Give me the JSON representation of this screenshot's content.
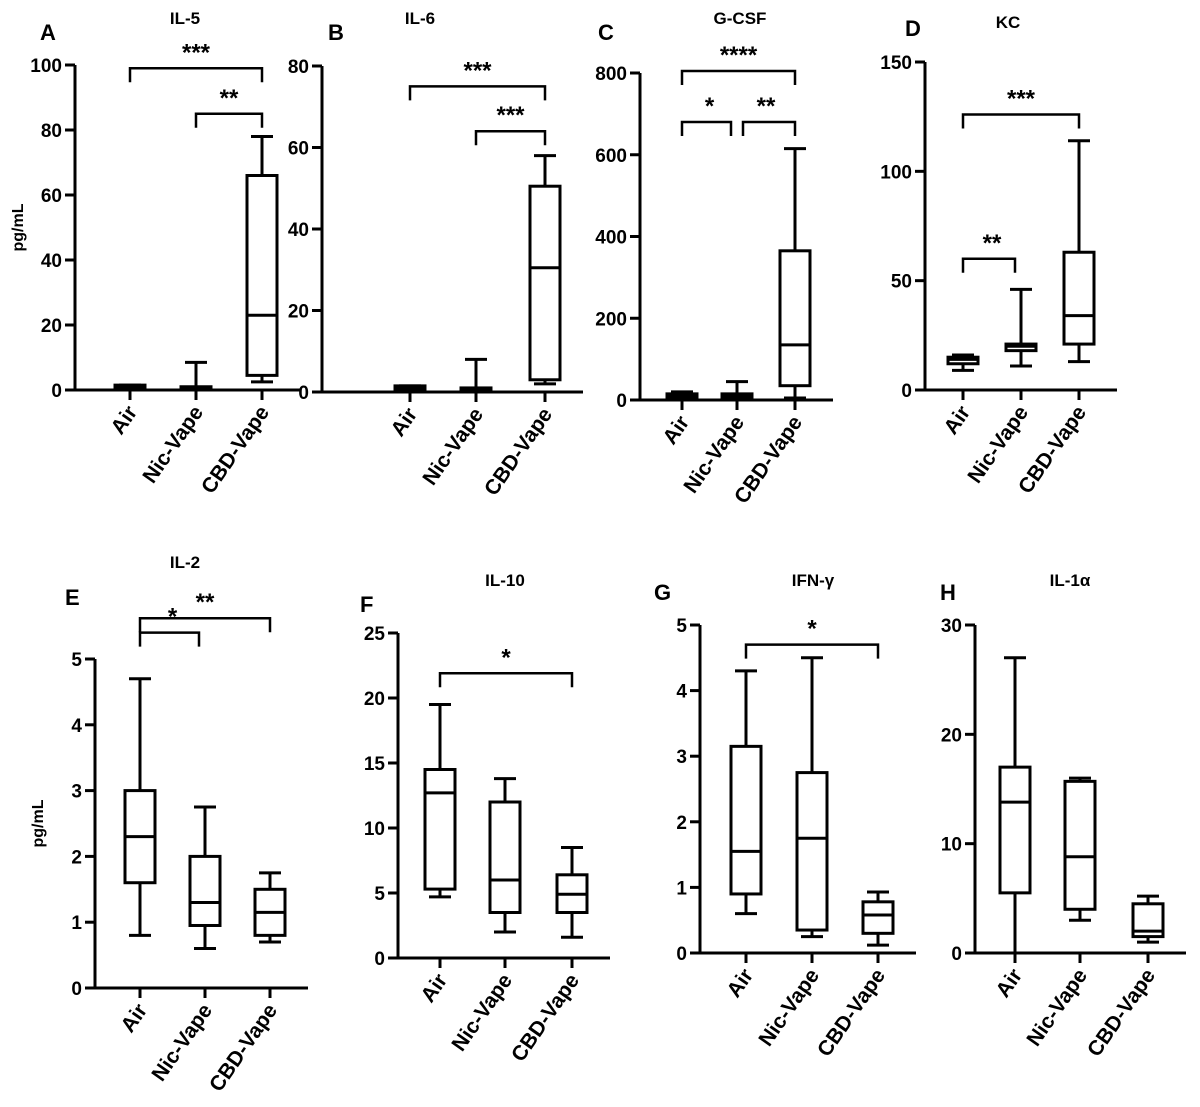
{
  "chart_data": [
    {
      "type": "box",
      "panel": "A",
      "title": "IL-5",
      "ylabel": "pg/mL",
      "ylim": [
        0,
        100
      ],
      "yticks": [
        0,
        20,
        40,
        60,
        80,
        100
      ],
      "categories": [
        "Air",
        "Nic-Vape",
        "CBD-Vape"
      ],
      "boxes": [
        {
          "min": 0,
          "q1": 0.5,
          "median": 1,
          "q3": 1.5,
          "max": 1.5
        },
        {
          "min": 0,
          "q1": 0,
          "median": 0.5,
          "q3": 1,
          "max": 8.5
        },
        {
          "min": 2.5,
          "q1": 4.5,
          "median": 23,
          "q3": 66,
          "max": 78
        }
      ],
      "significance": [
        {
          "from": 0,
          "to": 2,
          "label": "***",
          "y": 99
        },
        {
          "from": 1,
          "to": 2,
          "label": "**",
          "y": 85
        }
      ]
    },
    {
      "type": "box",
      "panel": "B",
      "title": "IL-6",
      "ylabel": "",
      "ylim": [
        0,
        80
      ],
      "yticks": [
        0,
        20,
        40,
        60,
        80
      ],
      "categories": [
        "Air",
        "Nic-Vape",
        "CBD-Vape"
      ],
      "boxes": [
        {
          "min": 0,
          "q1": 0.5,
          "median": 1,
          "q3": 1.5,
          "max": 1.5
        },
        {
          "min": 0,
          "q1": 0,
          "median": 0.5,
          "q3": 1,
          "max": 8
        },
        {
          "min": 2,
          "q1": 3,
          "median": 30.5,
          "q3": 50.5,
          "max": 58
        }
      ],
      "significance": [
        {
          "from": 0,
          "to": 2,
          "label": "***",
          "y": 75
        },
        {
          "from": 1,
          "to": 2,
          "label": "***",
          "y": 64
        }
      ]
    },
    {
      "type": "box",
      "panel": "C",
      "title": "G-CSF",
      "ylabel": "",
      "ylim": [
        0,
        800
      ],
      "yticks": [
        0,
        200,
        400,
        600,
        800
      ],
      "categories": [
        "Air",
        "Nic-Vape",
        "CBD-Vape"
      ],
      "boxes": [
        {
          "min": 0,
          "q1": 5,
          "median": 10,
          "q3": 15,
          "max": 20
        },
        {
          "min": 0,
          "q1": 5,
          "median": 10,
          "q3": 15,
          "max": 45
        },
        {
          "min": 5,
          "q1": 35,
          "median": 135,
          "q3": 365,
          "max": 615
        }
      ],
      "significance": [
        {
          "from": 0,
          "to": 2,
          "label": "****",
          "y": 805
        },
        {
          "from": 0,
          "to": 1,
          "label": "*",
          "y": 680
        },
        {
          "from": 1,
          "to": 2,
          "label": "**",
          "y": 680
        }
      ]
    },
    {
      "type": "box",
      "panel": "D",
      "title": "KC",
      "ylabel": "",
      "ylim": [
        0,
        150
      ],
      "yticks": [
        0,
        50,
        100,
        150
      ],
      "categories": [
        "Air",
        "Nic-Vape",
        "CBD-Vape"
      ],
      "boxes": [
        {
          "min": 9,
          "q1": 12,
          "median": 14,
          "q3": 15,
          "max": 16
        },
        {
          "min": 11,
          "q1": 18,
          "median": 20,
          "q3": 21,
          "max": 46
        },
        {
          "min": 13,
          "q1": 21,
          "median": 34,
          "q3": 63,
          "max": 114
        }
      ],
      "significance": [
        {
          "from": 0,
          "to": 2,
          "label": "***",
          "y": 126
        },
        {
          "from": 0,
          "to": 1,
          "label": "**",
          "y": 60
        }
      ]
    },
    {
      "type": "box",
      "panel": "E",
      "title": "IL-2",
      "ylabel": "pg/mL",
      "ylim": [
        0,
        5
      ],
      "yticks": [
        0,
        1,
        2,
        3,
        4,
        5
      ],
      "categories": [
        "Air",
        "Nic-Vape",
        "CBD-Vape"
      ],
      "boxes": [
        {
          "min": 0.8,
          "q1": 1.6,
          "median": 2.3,
          "q3": 3.0,
          "max": 4.7
        },
        {
          "min": 0.6,
          "q1": 0.95,
          "median": 1.3,
          "q3": 2.0,
          "max": 2.75
        },
        {
          "min": 0.7,
          "q1": 0.8,
          "median": 1.15,
          "q3": 1.5,
          "max": 1.75
        }
      ],
      "significance": [
        {
          "from": 0,
          "to": 2,
          "label": "**",
          "y": 5.62
        },
        {
          "from": 0,
          "to": 1,
          "label": "*",
          "y": 5.4
        }
      ]
    },
    {
      "type": "box",
      "panel": "F",
      "title": "IL-10",
      "ylabel": "",
      "ylim": [
        0,
        25
      ],
      "yticks": [
        0,
        5,
        10,
        15,
        20,
        25
      ],
      "categories": [
        "Air",
        "Nic-Vape",
        "CBD-Vape"
      ],
      "boxes": [
        {
          "min": 4.7,
          "q1": 5.3,
          "median": 12.7,
          "q3": 14.5,
          "max": 19.5
        },
        {
          "min": 2,
          "q1": 3.5,
          "median": 6,
          "q3": 12,
          "max": 13.8
        },
        {
          "min": 1.6,
          "q1": 3.5,
          "median": 4.9,
          "q3": 6.4,
          "max": 8.5
        }
      ],
      "significance": [
        {
          "from": 0,
          "to": 2,
          "label": "*",
          "y": 21.9
        }
      ]
    },
    {
      "type": "box",
      "panel": "G",
      "title": "IFN-γ",
      "ylabel": "",
      "ylim": [
        0,
        5
      ],
      "yticks": [
        0,
        1,
        2,
        3,
        4,
        5
      ],
      "categories": [
        "Air",
        "Nic-Vape",
        "CBD-Vape"
      ],
      "boxes": [
        {
          "min": 0.6,
          "q1": 0.9,
          "median": 1.55,
          "q3": 3.15,
          "max": 4.3
        },
        {
          "min": 0.25,
          "q1": 0.35,
          "median": 1.75,
          "q3": 2.75,
          "max": 4.5
        },
        {
          "min": 0.12,
          "q1": 0.3,
          "median": 0.58,
          "q3": 0.78,
          "max": 0.93
        }
      ],
      "significance": [
        {
          "from": 0,
          "to": 2,
          "label": "*",
          "y": 4.7
        }
      ]
    },
    {
      "type": "box",
      "panel": "H",
      "title": "IL-1α",
      "ylabel": "",
      "ylim": [
        0,
        30
      ],
      "yticks": [
        0,
        10,
        20,
        30
      ],
      "categories": [
        "Air",
        "Nic-Vape",
        "CBD-Vape"
      ],
      "boxes": [
        {
          "min": 0,
          "q1": 5.5,
          "median": 13.8,
          "q3": 17,
          "max": 27
        },
        {
          "min": 3,
          "q1": 4,
          "median": 8.8,
          "q3": 15.7,
          "max": 16
        },
        {
          "min": 1,
          "q1": 1.5,
          "median": 2,
          "q3": 4.5,
          "max": 5.2
        }
      ],
      "significance": []
    }
  ]
}
